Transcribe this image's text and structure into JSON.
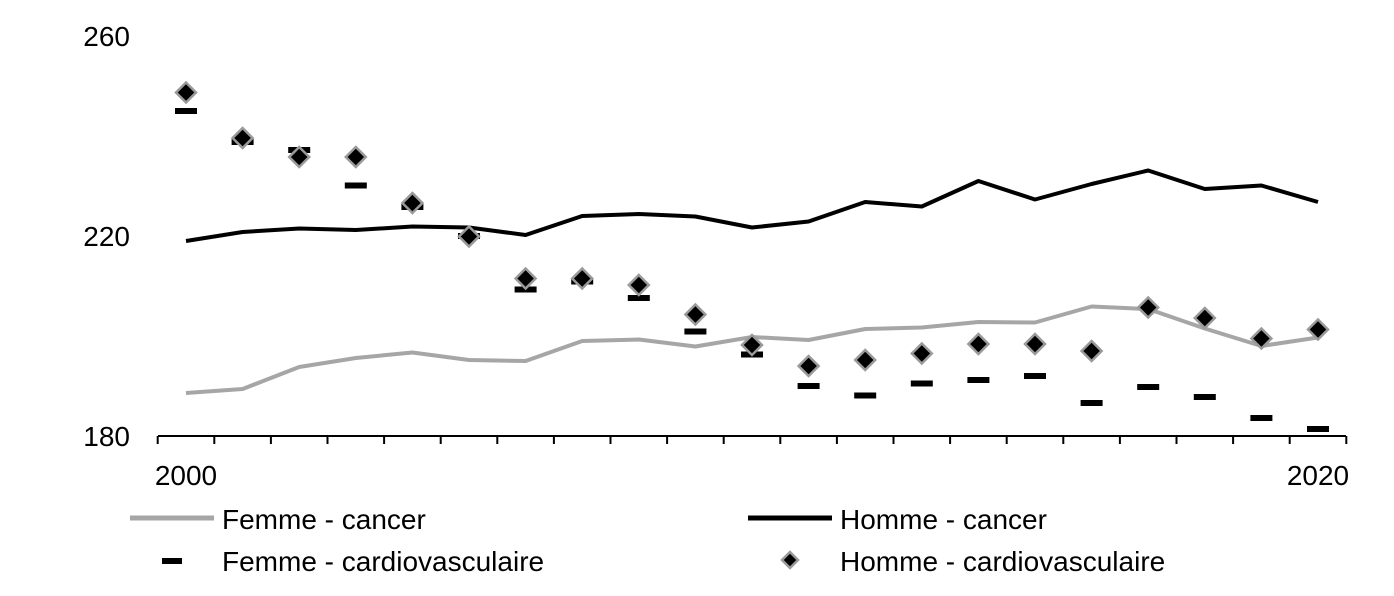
{
  "chart_data": {
    "type": "line",
    "x": [
      2000,
      2001,
      2002,
      2003,
      2004,
      2005,
      2006,
      2007,
      2008,
      2009,
      2010,
      2011,
      2012,
      2013,
      2014,
      2015,
      2016,
      2017,
      2018,
      2019,
      2020
    ],
    "x_tick_labels": [
      "2000",
      "2020"
    ],
    "y_tick_labels": [
      "180",
      "220",
      "260"
    ],
    "ylim": [
      180,
      260
    ],
    "grid": false,
    "series": [
      {
        "name": "Femme - cancer",
        "style": "line",
        "color": "#a6a6a6",
        "values": [
          188.6,
          189.4,
          193.8,
          195.6,
          196.7,
          195.2,
          195.0,
          199.0,
          199.3,
          197.9,
          199.8,
          199.2,
          201.4,
          201.7,
          202.8,
          202.7,
          205.9,
          205.4,
          201.5,
          198.0,
          199.7
        ]
      },
      {
        "name": "Homme - cancer",
        "style": "line",
        "color": "#000000",
        "values": [
          219.0,
          220.8,
          221.5,
          221.2,
          221.9,
          221.7,
          220.2,
          224.0,
          224.4,
          223.9,
          221.7,
          222.9,
          226.8,
          225.9,
          231.0,
          227.3,
          230.4,
          233.1,
          229.4,
          230.1,
          226.8
        ]
      },
      {
        "name": "Femme - cardiovasculaire",
        "style": "dash-marker",
        "color": "#000000",
        "values": [
          245.0,
          238.8,
          237.2,
          230.1,
          225.8,
          220.0,
          209.3,
          210.9,
          207.6,
          200.9,
          196.3,
          190.0,
          188.1,
          190.5,
          191.2,
          192.0,
          186.6,
          189.8,
          187.8,
          183.6,
          181.4
        ]
      },
      {
        "name": "Homme - cardiovasculaire",
        "style": "diamond-marker",
        "color": "#000000",
        "values": [
          248.7,
          239.6,
          235.8,
          235.8,
          226.6,
          219.9,
          211.5,
          211.5,
          210.2,
          204.3,
          198.2,
          194.0,
          195.2,
          196.5,
          198.4,
          198.4,
          197.0,
          205.7,
          203.6,
          199.5,
          201.3
        ]
      }
    ],
    "legend": {
      "position": "bottom",
      "entries": [
        "Femme - cancer",
        "Homme - cancer",
        "Femme - cardiovasculaire",
        "Homme - cardiovasculaire"
      ]
    }
  }
}
